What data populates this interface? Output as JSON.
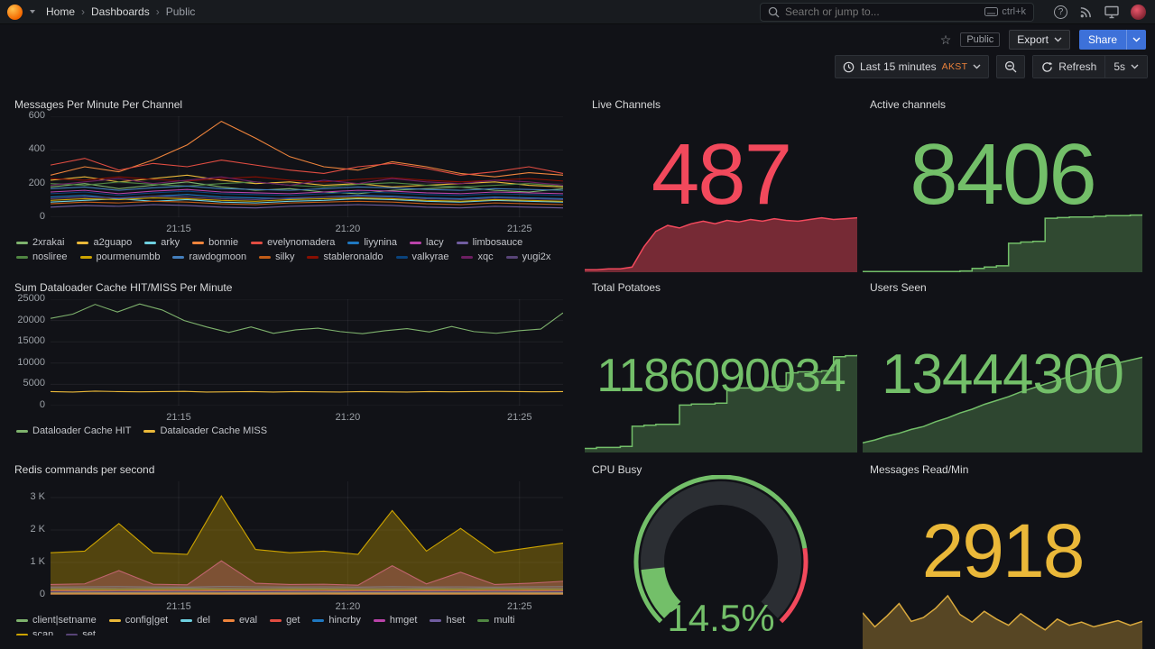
{
  "colors": {
    "red": "#F2495C",
    "green": "#73BF69",
    "yellow": "#EAB839",
    "blue_button": "#3D71D9",
    "tz_accent": "#E8803A"
  },
  "nav": {
    "breadcrumbs": [
      {
        "label": "Home"
      },
      {
        "label": "Dashboards"
      },
      {
        "label": "Public"
      }
    ],
    "search": {
      "placeholder": "Search or jump to...",
      "shortcut": "ctrl+k"
    }
  },
  "toolbar": {
    "tag": "Public",
    "export": "Export",
    "share": "Share"
  },
  "timebar": {
    "range": "Last 15 minutes",
    "tz": "AKST",
    "refresh": "Refresh",
    "interval": "5s"
  },
  "panels": {
    "messages": {
      "title": "Messages Per Minute Per Channel",
      "chart": {
        "type": "line",
        "ymax": 600,
        "y_ticks": [
          {
            "label": "600",
            "v": 600
          },
          {
            "label": "400",
            "v": 400
          },
          {
            "label": "200",
            "v": 200
          },
          {
            "label": "0",
            "v": 0
          }
        ],
        "x_ticks": [
          {
            "label": "21:15",
            "f": 0.25
          },
          {
            "label": "21:20",
            "f": 0.58
          },
          {
            "label": "21:25",
            "f": 0.915
          }
        ],
        "series": [
          {
            "name": "2xrakai",
            "color": "#7EB26D",
            "values": [
              180,
              200,
              170,
              190,
              210,
              180,
              160,
              170,
              150,
              140,
              160,
              170,
              180,
              160,
              150,
              170
            ]
          },
          {
            "name": "a2guapo",
            "color": "#EAB839",
            "values": [
              220,
              240,
              210,
              230,
              250,
              220,
              200,
              210,
              190,
              200,
              180,
              190,
              200,
              210,
              190,
              180
            ]
          },
          {
            "name": "arky",
            "color": "#6ED0E0",
            "values": [
              90,
              100,
              110,
              95,
              105,
              90,
              85,
              95,
              100,
              110,
              105,
              95,
              90,
              100,
              95,
              90
            ]
          },
          {
            "name": "bonnie",
            "color": "#EF843C",
            "values": [
              250,
              300,
              270,
              340,
              430,
              570,
              470,
              360,
              300,
              280,
              330,
              300,
              260,
              240,
              265,
              250
            ]
          },
          {
            "name": "evelynomadera",
            "color": "#E24D42",
            "values": [
              310,
              350,
              280,
              320,
              300,
              340,
              310,
              280,
              260,
              300,
              320,
              290,
              250,
              270,
              300,
              260
            ]
          },
          {
            "name": "liyynina",
            "color": "#1F78C1",
            "values": [
              120,
              130,
              110,
              125,
              135,
              120,
              115,
              110,
              120,
              130,
              125,
              115,
              110,
              120,
              115,
              110
            ]
          },
          {
            "name": "lacy",
            "color": "#BA43A9",
            "values": [
              150,
              160,
              140,
              155,
              165,
              150,
              145,
              140,
              150,
              160,
              155,
              145,
              140,
              150,
              145,
              140
            ]
          },
          {
            "name": "limbosauce",
            "color": "#705DA0",
            "values": [
              60,
              70,
              65,
              75,
              70,
              60,
              55,
              65,
              70,
              75,
              70,
              60,
              55,
              65,
              60,
              55
            ]
          },
          {
            "name": "nosliree",
            "color": "#508642",
            "values": [
              200,
              190,
              210,
              195,
              185,
              200,
              210,
              190,
              180,
              195,
              205,
              190,
              180,
              190,
              200,
              185
            ]
          },
          {
            "name": "pourmenumbb",
            "color": "#CCA300",
            "values": [
              100,
              110,
              105,
              115,
              110,
              100,
              95,
              105,
              110,
              115,
              110,
              100,
              95,
              105,
              100,
              95
            ]
          },
          {
            "name": "rawdogmoon",
            "color": "#447EBC",
            "values": [
              170,
              180,
              160,
              175,
              185,
              170,
              165,
              160,
              170,
              180,
              175,
              165,
              160,
              170,
              165,
              160
            ]
          },
          {
            "name": "silky",
            "color": "#C15C17",
            "values": [
              80,
              90,
              85,
              95,
              90,
              80,
              75,
              85,
              90,
              95,
              90,
              80,
              75,
              85,
              80,
              75
            ]
          },
          {
            "name": "stableronaldo",
            "color": "#890F02",
            "values": [
              230,
              220,
              240,
              225,
              215,
              230,
              240,
              220,
              210,
              225,
              235,
              220,
              210,
              220,
              230,
              215
            ]
          },
          {
            "name": "valkyrae",
            "color": "#0A437C",
            "values": [
              140,
              150,
              130,
              145,
              155,
              140,
              135,
              130,
              140,
              150,
              145,
              135,
              130,
              140,
              135,
              130
            ]
          },
          {
            "name": "xqc",
            "color": "#6D1F62",
            "values": [
              190,
              210,
              230,
              200,
              220,
              240,
              210,
              190,
              220,
              200,
              230,
              210,
              200,
              220,
              210,
              190
            ]
          },
          {
            "name": "yugi2x",
            "color": "#584477",
            "values": [
              110,
              120,
              115,
              125,
              120,
              110,
              105,
              115,
              120,
              125,
              120,
              110,
              105,
              115,
              110,
              105
            ]
          }
        ]
      }
    },
    "dataloader": {
      "title": "Sum Dataloader Cache HIT/MISS Per Minute",
      "chart": {
        "type": "line",
        "ymax": 25000,
        "y_ticks": [
          {
            "label": "25000",
            "v": 25000
          },
          {
            "label": "20000",
            "v": 20000
          },
          {
            "label": "15000",
            "v": 15000
          },
          {
            "label": "10000",
            "v": 10000
          },
          {
            "label": "5000",
            "v": 5000
          },
          {
            "label": "0",
            "v": 0
          }
        ],
        "x_ticks": [
          {
            "label": "21:15",
            "f": 0.25
          },
          {
            "label": "21:20",
            "f": 0.58
          },
          {
            "label": "21:25",
            "f": 0.915
          }
        ],
        "series": [
          {
            "name": "Dataloader Cache HIT",
            "color": "#7EB26D",
            "values": [
              20500,
              21500,
              23800,
              22000,
              23900,
              22500,
              20000,
              18500,
              17200,
              18500,
              17000,
              17800,
              18200,
              17400,
              16900,
              17600,
              18100,
              17300,
              18600,
              17400,
              17000,
              17600,
              18000,
              21800
            ]
          },
          {
            "name": "Dataloader Cache MISS",
            "color": "#EAB839",
            "values": [
              3300,
              3200,
              3400,
              3300,
              3250,
              3300,
              3350,
              3200,
              3250,
              3300,
              3200,
              3300,
              3250,
              3200,
              3300,
              3250,
              3200,
              3300,
              3250,
              3300,
              3350,
              3300,
              3250,
              3300
            ]
          }
        ]
      }
    },
    "redis": {
      "title": "Redis commands per second",
      "chart": {
        "type": "line",
        "ymax": 3500,
        "y_ticks": [
          {
            "label": "3 K",
            "v": 3000
          },
          {
            "label": "2 K",
            "v": 2000
          },
          {
            "label": "1 K",
            "v": 1000
          },
          {
            "label": "0",
            "v": 0
          }
        ],
        "x_ticks": [
          {
            "label": "21:15",
            "f": 0.25
          },
          {
            "label": "21:20",
            "f": 0.58
          },
          {
            "label": "21:25",
            "f": 0.915
          }
        ],
        "series": [
          {
            "name": "client|setname",
            "color": "#7EB26D",
            "values": [
              55,
              60,
              56,
              58,
              60,
              57,
              55,
              58,
              60,
              56,
              55,
              58,
              57,
              60,
              58,
              56
            ]
          },
          {
            "name": "config|get",
            "color": "#EAB839",
            "values": [
              35,
              38,
              36,
              37,
              39,
              36,
              35,
              37,
              38,
              36,
              35,
              37,
              36,
              38,
              37,
              35
            ]
          },
          {
            "name": "del",
            "color": "#6ED0E0",
            "values": [
              90,
              95,
              88,
              92,
              96,
              90,
              86,
              92,
              95,
              88,
              86,
              92,
              90,
              96,
              92,
              88
            ]
          },
          {
            "name": "eval",
            "color": "#EF843C",
            "values": [
              120,
              125,
              118,
              122,
              128,
              120,
              115,
              122,
              126,
              118,
              115,
              122,
              120,
              128,
              122,
              118
            ]
          },
          {
            "name": "get",
            "color": "#E24D42",
            "values": [
              150,
              158,
              148,
              154,
              160,
              150,
              145,
              154,
              158,
              148,
              145,
              154,
              150,
              160,
              154,
              148
            ]
          },
          {
            "name": "hincrby",
            "color": "#1F78C1",
            "values": [
              240,
              250,
              255,
              245,
              240,
              260,
              250,
              245,
              250,
              240,
              255,
              245,
              250,
              240,
              250,
              255
            ]
          },
          {
            "name": "hmget",
            "color": "#BA43A9",
            "fill": 0.4,
            "values": [
              320,
              340,
              750,
              330,
              310,
              1050,
              360,
              320,
              330,
              300,
              900,
              340,
              700,
              320,
              360,
              420
            ]
          },
          {
            "name": "hset",
            "color": "#705DA0",
            "values": [
              200,
              205,
              198,
              202,
              208,
              200,
              195,
              202,
              206,
              198,
              195,
              202,
              200,
              208,
              202,
              198
            ]
          },
          {
            "name": "multi",
            "color": "#508642",
            "values": [
              175,
              180,
              172,
              178,
              182,
              175,
              170,
              178,
              180,
              172,
              170,
              178,
              175,
              182,
              178,
              172
            ]
          },
          {
            "name": "scan",
            "color": "#CCA300",
            "fill": 0.35,
            "values": [
              1300,
              1350,
              2200,
              1300,
              1250,
              3050,
              1400,
              1300,
              1350,
              1250,
              2600,
              1350,
              2050,
              1300,
              1450,
              1600
            ]
          },
          {
            "name": "set",
            "color": "#584477",
            "values": [
              100,
              104,
              98,
              102,
              106,
              100,
              95,
              102,
              105,
              98,
              95,
              102,
              100,
              106,
              102,
              98
            ]
          }
        ]
      }
    },
    "live_channels": {
      "title": "Live Channels",
      "value": "487",
      "color": "#F2495C",
      "spark": {
        "color": "#F2495C",
        "opacity": 0.45,
        "values": [
          3,
          3,
          4,
          4,
          6,
          30,
          48,
          55,
          52,
          57,
          60,
          57,
          61,
          59,
          62,
          60,
          63,
          61,
          60,
          62,
          64,
          62,
          63,
          64
        ]
      }
    },
    "active_channels": {
      "title": "Active channels",
      "value": "8406",
      "color": "#73BF69",
      "spark": {
        "color": "#73BF69",
        "opacity": 0.32,
        "step": true,
        "values": [
          1,
          1,
          1,
          1,
          1,
          1,
          1,
          1,
          2,
          6,
          8,
          10,
          45,
          47,
          48,
          84,
          85,
          86,
          86,
          87,
          88,
          88,
          89,
          90
        ]
      }
    },
    "total_potatoes": {
      "title": "Total Potatoes",
      "value": "1186090034",
      "color": "#73BF69",
      "spark": {
        "color": "#73BF69",
        "opacity": 0.3,
        "step": true,
        "values": [
          4,
          5,
          5,
          6,
          26,
          27,
          28,
          28,
          47,
          48,
          48,
          49,
          63,
          64,
          64,
          65,
          66,
          79,
          80,
          80,
          81,
          95,
          96,
          97
        ]
      }
    },
    "users_seen": {
      "title": "Users Seen",
      "value": "13444300",
      "color": "#73BF69",
      "spark": {
        "color": "#73BF69",
        "opacity": 0.3,
        "values": [
          10,
          13,
          17,
          20,
          24,
          27,
          32,
          36,
          41,
          45,
          50,
          54,
          58,
          63,
          67,
          71,
          75,
          79,
          83,
          87,
          90,
          93,
          96,
          99
        ]
      }
    },
    "cpu": {
      "title": "CPU Busy",
      "value": "14.5%",
      "percent": 14.5,
      "color": "#73BF69",
      "gauge": {
        "track": "#2b2e33",
        "ring_threshold": 80,
        "ring_color": "#73BF69",
        "ring_color2": "#F2495C"
      }
    },
    "messages_read": {
      "title": "Messages Read/Min",
      "value": "2918",
      "color": "#EAB839",
      "spark": {
        "color": "#D9A93D",
        "opacity": 0.35,
        "values": [
          56,
          38,
          52,
          68,
          45,
          50,
          62,
          78,
          54,
          44,
          58,
          48,
          40,
          55,
          44,
          34,
          48,
          40,
          44,
          38,
          42,
          46,
          40,
          45
        ]
      }
    }
  }
}
